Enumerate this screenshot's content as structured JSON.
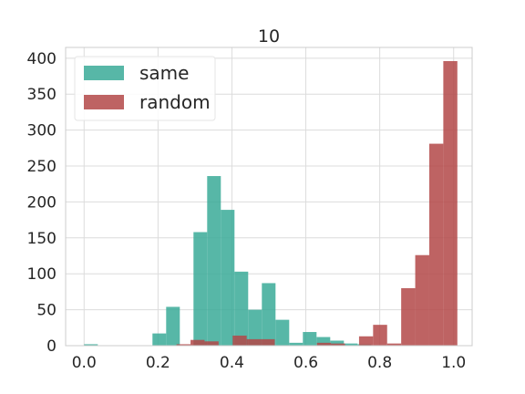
{
  "chart_data": {
    "type": "histogram",
    "title": "10",
    "xlabel": "",
    "ylabel": "",
    "xlim": [
      -0.05,
      1.05
    ],
    "ylim": [
      0,
      415
    ],
    "xticks": [
      "0.0",
      "0.2",
      "0.4",
      "0.6",
      "0.8",
      "1.0"
    ],
    "yticks": [
      "0",
      "50",
      "100",
      "150",
      "200",
      "250",
      "300",
      "350",
      "400"
    ],
    "grid": true,
    "legend_position": "top-left",
    "series": [
      {
        "name": "same",
        "color": "#3aaa98",
        "bins": [
          {
            "x0": 0.0,
            "x1": 0.037,
            "value": 2
          },
          {
            "x0": 0.185,
            "x1": 0.222,
            "value": 17
          },
          {
            "x0": 0.222,
            "x1": 0.259,
            "value": 54
          },
          {
            "x0": 0.296,
            "x1": 0.333,
            "value": 158
          },
          {
            "x0": 0.333,
            "x1": 0.37,
            "value": 236
          },
          {
            "x0": 0.37,
            "x1": 0.407,
            "value": 189
          },
          {
            "x0": 0.407,
            "x1": 0.444,
            "value": 103
          },
          {
            "x0": 0.444,
            "x1": 0.481,
            "value": 50
          },
          {
            "x0": 0.481,
            "x1": 0.518,
            "value": 87
          },
          {
            "x0": 0.518,
            "x1": 0.555,
            "value": 36
          },
          {
            "x0": 0.555,
            "x1": 0.592,
            "value": 4
          },
          {
            "x0": 0.592,
            "x1": 0.629,
            "value": 19
          },
          {
            "x0": 0.629,
            "x1": 0.666,
            "value": 12
          },
          {
            "x0": 0.666,
            "x1": 0.703,
            "value": 7
          },
          {
            "x0": 0.703,
            "x1": 0.74,
            "value": 3
          },
          {
            "x0": 0.74,
            "x1": 0.777,
            "value": 2
          }
        ]
      },
      {
        "name": "random",
        "color": "#b34848",
        "bins": [
          {
            "x0": 0.25,
            "x1": 0.288,
            "value": 2
          },
          {
            "x0": 0.288,
            "x1": 0.326,
            "value": 8
          },
          {
            "x0": 0.326,
            "x1": 0.364,
            "value": 6
          },
          {
            "x0": 0.402,
            "x1": 0.44,
            "value": 14
          },
          {
            "x0": 0.44,
            "x1": 0.478,
            "value": 9
          },
          {
            "x0": 0.478,
            "x1": 0.516,
            "value": 9
          },
          {
            "x0": 0.63,
            "x1": 0.668,
            "value": 4
          },
          {
            "x0": 0.668,
            "x1": 0.706,
            "value": 3
          },
          {
            "x0": 0.744,
            "x1": 0.782,
            "value": 13
          },
          {
            "x0": 0.782,
            "x1": 0.82,
            "value": 29
          },
          {
            "x0": 0.82,
            "x1": 0.858,
            "value": 3
          },
          {
            "x0": 0.858,
            "x1": 0.896,
            "value": 80
          },
          {
            "x0": 0.896,
            "x1": 0.934,
            "value": 126
          },
          {
            "x0": 0.934,
            "x1": 0.972,
            "value": 281
          },
          {
            "x0": 0.972,
            "x1": 1.01,
            "value": 396
          }
        ]
      }
    ]
  }
}
